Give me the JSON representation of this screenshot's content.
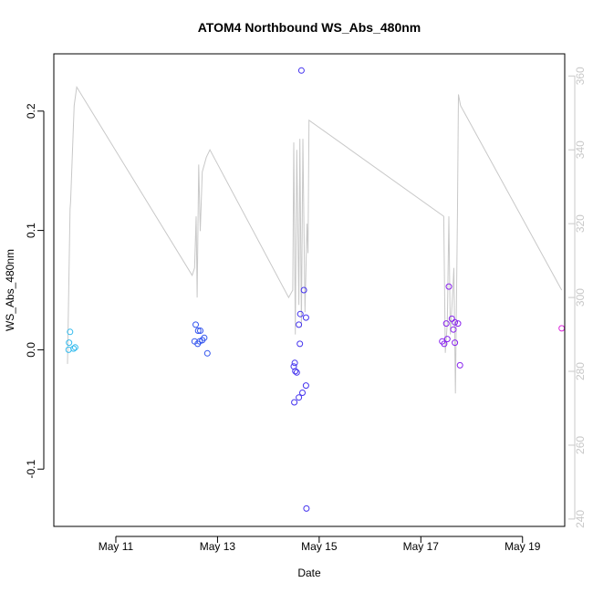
{
  "chart_data": {
    "type": "scatter",
    "title": "ATOM4 Northbound WS_Abs_480nm",
    "xlabel": "Date",
    "ylabel": "WS_Abs_480nm",
    "x_unit": "days since May 10",
    "xlim": [
      9.78,
      19.83
    ],
    "ylim": [
      -0.148,
      0.248
    ],
    "x_ticks": [
      {
        "value": 11,
        "label": "May 11"
      },
      {
        "value": 13,
        "label": "May 13"
      },
      {
        "value": 15,
        "label": "May 15"
      },
      {
        "value": 17,
        "label": "May 17"
      },
      {
        "value": 19,
        "label": "May 19"
      }
    ],
    "y_ticks": [
      {
        "value": -0.1,
        "label": "-0.1"
      },
      {
        "value": 0.0,
        "label": "0.0"
      },
      {
        "value": 0.1,
        "label": "0.1"
      },
      {
        "value": 0.2,
        "label": "0.2"
      }
    ],
    "y2lim": [
      238,
      366
    ],
    "y2_ticks": [
      {
        "value": 240,
        "label": "240"
      },
      {
        "value": 260,
        "label": "260"
      },
      {
        "value": 280,
        "label": "280"
      },
      {
        "value": 300,
        "label": "300"
      },
      {
        "value": 320,
        "label": "320"
      },
      {
        "value": 340,
        "label": "340"
      },
      {
        "value": 360,
        "label": "360"
      }
    ],
    "grid": false,
    "series": [
      {
        "name": "WS_Abs_480nm",
        "kind": "points",
        "points": [
          {
            "x": 10.1,
            "y": 0.015,
            "color": "#33bbee"
          },
          {
            "x": 10.08,
            "y": 0.006,
            "color": "#33bbee"
          },
          {
            "x": 10.07,
            "y": 0.0,
            "color": "#33bbee"
          },
          {
            "x": 10.17,
            "y": 0.001,
            "color": "#33bbee"
          },
          {
            "x": 10.2,
            "y": 0.002,
            "color": "#33bbee"
          },
          {
            "x": 12.57,
            "y": 0.021,
            "color": "#3355ee"
          },
          {
            "x": 12.62,
            "y": 0.016,
            "color": "#3355ee"
          },
          {
            "x": 12.66,
            "y": 0.016,
            "color": "#3355ee"
          },
          {
            "x": 12.55,
            "y": 0.007,
            "color": "#3355ee"
          },
          {
            "x": 12.61,
            "y": 0.005,
            "color": "#3355ee"
          },
          {
            "x": 12.65,
            "y": 0.007,
            "color": "#3355ee"
          },
          {
            "x": 12.7,
            "y": 0.008,
            "color": "#3355ee"
          },
          {
            "x": 12.74,
            "y": 0.01,
            "color": "#3355ee"
          },
          {
            "x": 12.8,
            "y": -0.003,
            "color": "#3355ee"
          },
          {
            "x": 14.65,
            "y": 0.234,
            "color": "#4433ee"
          },
          {
            "x": 14.7,
            "y": 0.05,
            "color": "#4433ee"
          },
          {
            "x": 14.63,
            "y": 0.03,
            "color": "#4433ee"
          },
          {
            "x": 14.74,
            "y": 0.027,
            "color": "#4433ee"
          },
          {
            "x": 14.6,
            "y": 0.021,
            "color": "#4433ee"
          },
          {
            "x": 14.62,
            "y": 0.005,
            "color": "#4433ee"
          },
          {
            "x": 14.52,
            "y": -0.011,
            "color": "#4433ee"
          },
          {
            "x": 14.5,
            "y": -0.014,
            "color": "#4433ee"
          },
          {
            "x": 14.53,
            "y": -0.018,
            "color": "#4433ee"
          },
          {
            "x": 14.56,
            "y": -0.019,
            "color": "#4433ee"
          },
          {
            "x": 14.74,
            "y": -0.03,
            "color": "#4433ee"
          },
          {
            "x": 14.67,
            "y": -0.036,
            "color": "#4433ee"
          },
          {
            "x": 14.6,
            "y": -0.04,
            "color": "#4433ee"
          },
          {
            "x": 14.51,
            "y": -0.044,
            "color": "#4433ee"
          },
          {
            "x": 14.75,
            "y": -0.133,
            "color": "#4433ee"
          },
          {
            "x": 17.55,
            "y": 0.053,
            "color": "#8822ee"
          },
          {
            "x": 17.61,
            "y": 0.026,
            "color": "#8822ee"
          },
          {
            "x": 17.5,
            "y": 0.022,
            "color": "#8822ee"
          },
          {
            "x": 17.67,
            "y": 0.023,
            "color": "#8822ee"
          },
          {
            "x": 17.73,
            "y": 0.022,
            "color": "#8822ee"
          },
          {
            "x": 17.64,
            "y": 0.017,
            "color": "#8822ee"
          },
          {
            "x": 17.52,
            "y": 0.009,
            "color": "#8822ee"
          },
          {
            "x": 17.42,
            "y": 0.007,
            "color": "#8822ee"
          },
          {
            "x": 17.46,
            "y": 0.005,
            "color": "#8822ee"
          },
          {
            "x": 17.67,
            "y": 0.006,
            "color": "#8822ee"
          },
          {
            "x": 17.77,
            "y": -0.013,
            "color": "#8822ee"
          },
          {
            "x": 19.77,
            "y": 0.018,
            "color": "#dd22dd"
          }
        ]
      },
      {
        "name": "secondary (right axis)",
        "kind": "line",
        "color": "#c8c8c8",
        "axis": "right",
        "points": [
          {
            "x": 10.05,
            "y": 282
          },
          {
            "x": 10.1,
            "y": 324
          },
          {
            "x": 10.11,
            "y": 326
          },
          {
            "x": 10.18,
            "y": 352
          },
          {
            "x": 10.23,
            "y": 357
          },
          {
            "x": 12.5,
            "y": 306
          },
          {
            "x": 12.55,
            "y": 308
          },
          {
            "x": 12.58,
            "y": 322
          },
          {
            "x": 12.6,
            "y": 300
          },
          {
            "x": 12.63,
            "y": 336
          },
          {
            "x": 12.66,
            "y": 318
          },
          {
            "x": 12.7,
            "y": 334
          },
          {
            "x": 12.78,
            "y": 338
          },
          {
            "x": 12.85,
            "y": 340
          },
          {
            "x": 14.4,
            "y": 300
          },
          {
            "x": 14.48,
            "y": 302
          },
          {
            "x": 14.5,
            "y": 342
          },
          {
            "x": 14.53,
            "y": 290
          },
          {
            "x": 14.56,
            "y": 340
          },
          {
            "x": 14.6,
            "y": 298
          },
          {
            "x": 14.62,
            "y": 343
          },
          {
            "x": 14.65,
            "y": 292
          },
          {
            "x": 14.68,
            "y": 343
          },
          {
            "x": 14.72,
            "y": 296
          },
          {
            "x": 14.76,
            "y": 320
          },
          {
            "x": 14.78,
            "y": 312
          },
          {
            "x": 14.8,
            "y": 348
          },
          {
            "x": 17.45,
            "y": 322
          },
          {
            "x": 17.48,
            "y": 285
          },
          {
            "x": 17.52,
            "y": 293
          },
          {
            "x": 17.55,
            "y": 322
          },
          {
            "x": 17.58,
            "y": 290
          },
          {
            "x": 17.62,
            "y": 300
          },
          {
            "x": 17.65,
            "y": 308
          },
          {
            "x": 17.68,
            "y": 274
          },
          {
            "x": 17.72,
            "y": 322
          },
          {
            "x": 17.74,
            "y": 355
          },
          {
            "x": 17.78,
            "y": 352
          },
          {
            "x": 19.77,
            "y": 302
          }
        ]
      }
    ]
  }
}
